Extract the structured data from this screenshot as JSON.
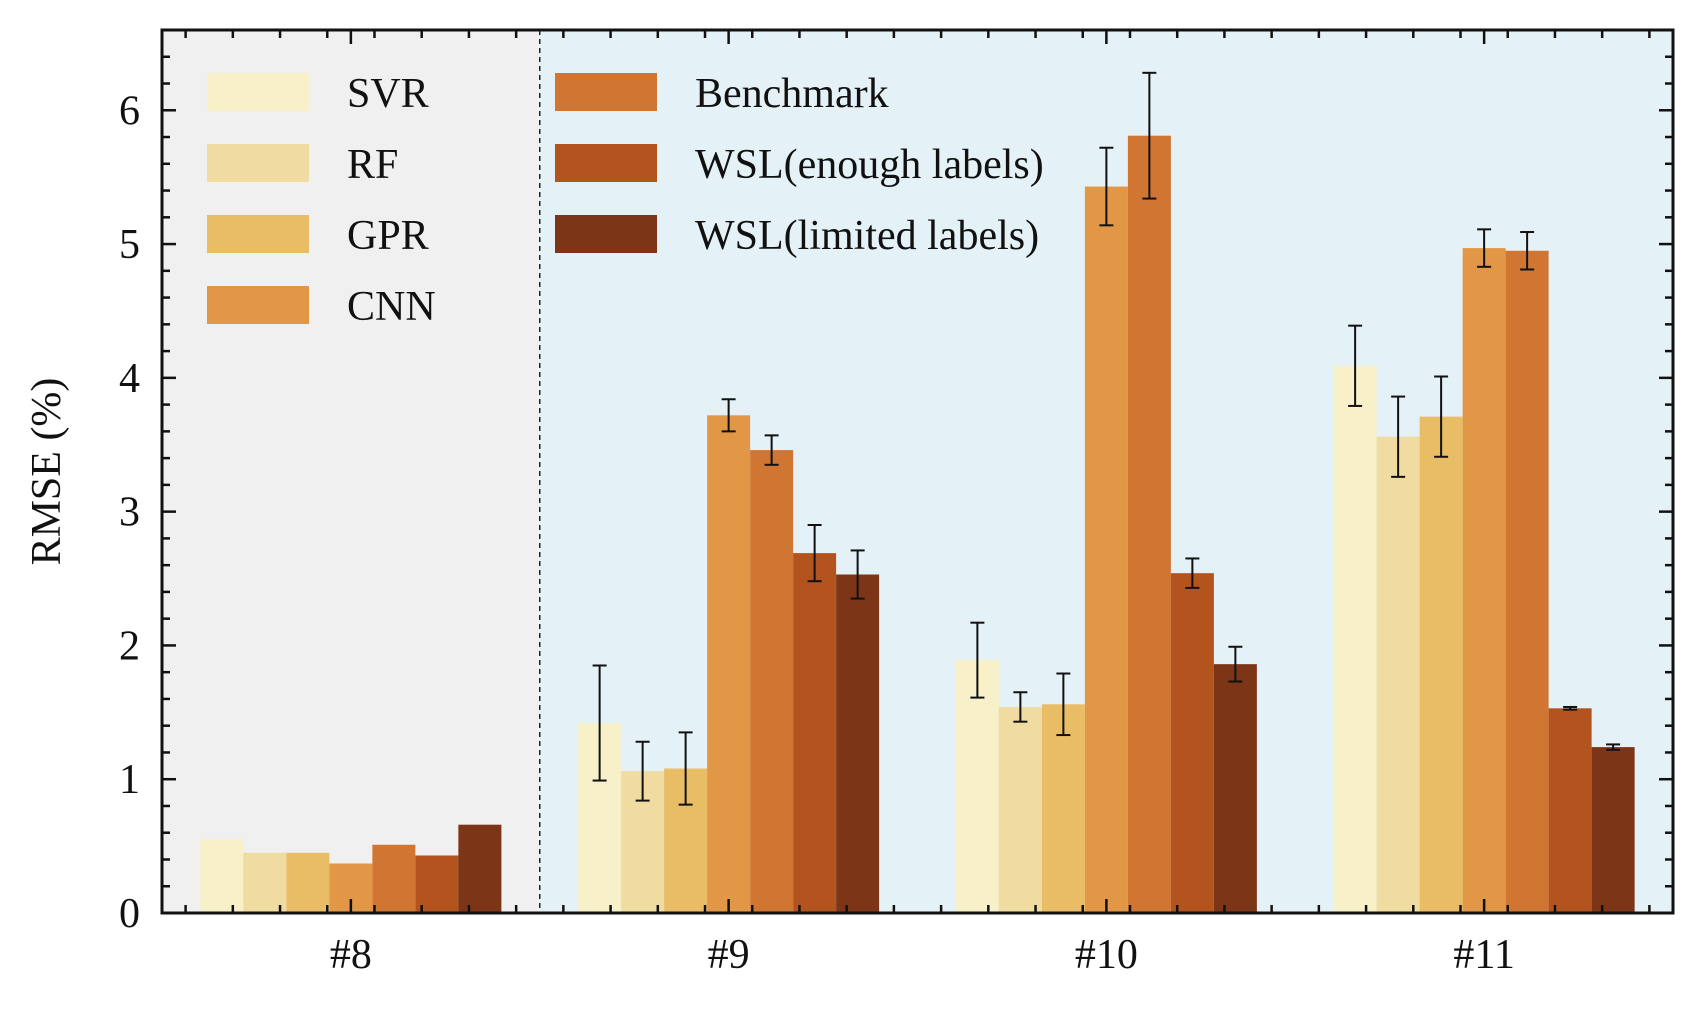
{
  "chart_data": {
    "type": "bar",
    "categories": [
      "#8",
      "#9",
      "#10",
      "#11"
    ],
    "ylabel": "RMSE (%)",
    "xlabel": "",
    "ylim": [
      0,
      6.6
    ],
    "yticks": [
      "0",
      "1",
      "2",
      "3",
      "4",
      "5",
      "6"
    ],
    "legend": {
      "placement": "top-left",
      "columns": 2
    },
    "regions": [
      {
        "categories": [
          "#8"
        ],
        "color": "#f0f0f0"
      },
      {
        "categories": [
          "#9",
          "#10",
          "#11"
        ],
        "color": "#e4f2f7"
      }
    ],
    "series": [
      {
        "name": "SVR",
        "color": "#f7f0c8",
        "values": [
          0.55,
          1.42,
          1.89,
          4.09
        ],
        "errors": [
          null,
          0.43,
          0.28,
          0.3
        ]
      },
      {
        "name": "RF",
        "color": "#f0dba0",
        "values": [
          0.45,
          1.06,
          1.54,
          3.56
        ],
        "errors": [
          null,
          0.22,
          0.11,
          0.3
        ]
      },
      {
        "name": "GPR",
        "color": "#e9bd66",
        "values": [
          0.45,
          1.08,
          1.56,
          3.71
        ],
        "errors": [
          null,
          0.27,
          0.23,
          0.3
        ]
      },
      {
        "name": "CNN",
        "color": "#e19746",
        "values": [
          0.37,
          3.72,
          5.43,
          4.97
        ],
        "errors": [
          null,
          0.12,
          0.29,
          0.14
        ]
      },
      {
        "name": "Benchmark",
        "color": "#d17533",
        "values": [
          0.51,
          3.46,
          5.81,
          4.95
        ],
        "errors": [
          null,
          0.11,
          0.47,
          0.14
        ]
      },
      {
        "name": "WSL(enough labels)",
        "color": "#b3541f",
        "values": [
          0.43,
          2.69,
          2.54,
          1.53
        ],
        "errors": [
          null,
          0.21,
          0.11,
          0.01
        ]
      },
      {
        "name": "WSL(limited labels)",
        "color": "#7d3517",
        "values": [
          0.66,
          2.53,
          1.86,
          1.24
        ],
        "errors": [
          null,
          0.18,
          0.13,
          0.02
        ]
      }
    ]
  }
}
